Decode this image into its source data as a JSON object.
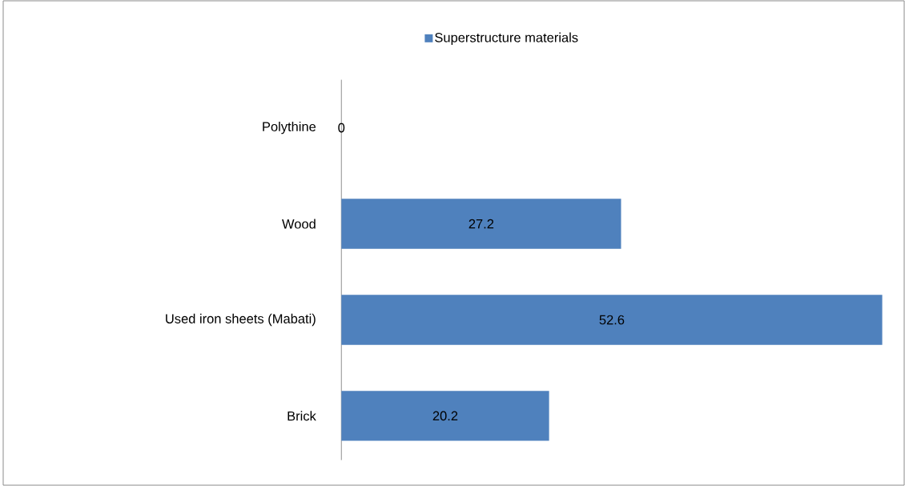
{
  "chart_data": {
    "type": "bar",
    "orientation": "horizontal",
    "categories": [
      "Polythine",
      "Wood",
      "Used iron sheets (Mabati)",
      "Brick"
    ],
    "series": [
      {
        "name": "Superstructure materials",
        "color": "#4f81bd",
        "values": [
          0,
          27.2,
          52.6,
          20.2
        ]
      }
    ],
    "data_labels": true,
    "legend": "top"
  }
}
